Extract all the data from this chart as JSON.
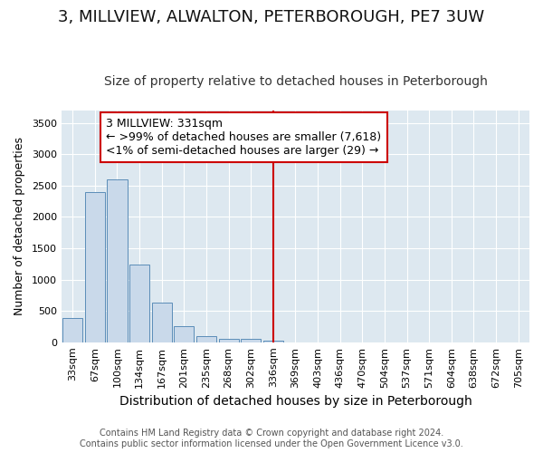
{
  "title": "3, MILLVIEW, ALWALTON, PETERBOROUGH, PE7 3UW",
  "subtitle": "Size of property relative to detached houses in Peterborough",
  "xlabel": "Distribution of detached houses by size in Peterborough",
  "ylabel": "Number of detached properties",
  "footer_line1": "Contains HM Land Registry data © Crown copyright and database right 2024.",
  "footer_line2": "Contains public sector information licensed under the Open Government Licence v3.0.",
  "bar_color": "#c9d9ea",
  "bar_edge_color": "#5b8db8",
  "vline_color": "#cc0000",
  "annotation_title": "3 MILLVIEW: 331sqm",
  "annotation_line1": "← >99% of detached houses are smaller (7,618)",
  "annotation_line2": "<1% of semi-detached houses are larger (29) →",
  "categories": [
    "33sqm",
    "67sqm",
    "100sqm",
    "134sqm",
    "167sqm",
    "201sqm",
    "235sqm",
    "268sqm",
    "302sqm",
    "336sqm",
    "369sqm",
    "403sqm",
    "436sqm",
    "470sqm",
    "504sqm",
    "537sqm",
    "571sqm",
    "604sqm",
    "638sqm",
    "672sqm",
    "705sqm"
  ],
  "bar_heights": [
    390,
    2400,
    2600,
    1240,
    640,
    260,
    100,
    55,
    55,
    30,
    0,
    0,
    0,
    0,
    0,
    0,
    0,
    0,
    0,
    0,
    0
  ],
  "ylim": [
    0,
    3700
  ],
  "yticks": [
    0,
    500,
    1000,
    1500,
    2000,
    2500,
    3000,
    3500
  ],
  "vline_x_index": 9,
  "fig_bg": "#ffffff",
  "plot_bg": "#dde8f0",
  "grid_color": "#ffffff",
  "title_fontsize": 13,
  "subtitle_fontsize": 10,
  "ylabel_fontsize": 9,
  "xlabel_fontsize": 10,
  "tick_fontsize": 8,
  "annotation_fontsize": 9,
  "footer_fontsize": 7
}
